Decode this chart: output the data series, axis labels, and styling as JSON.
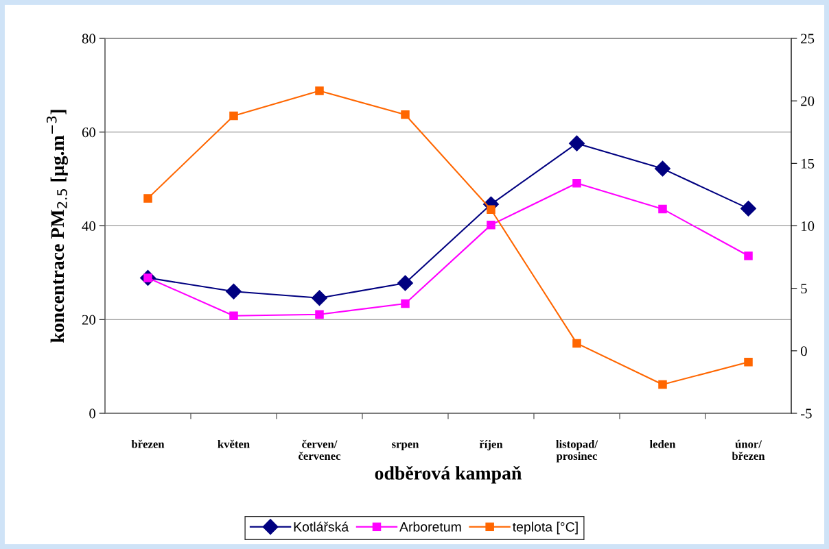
{
  "chart_data": {
    "type": "line",
    "categories": [
      "březen",
      "květen",
      "červen/\nčervenec",
      "srpen",
      "říjen",
      "listopad/\nprosinec",
      "leden",
      "únor/\nbřezen"
    ],
    "xlabel": "odběrová kampaň",
    "ylabel": "koncentrace PM$_{2.5}$ [µg.m$^{−3}$]",
    "series": [
      {
        "name": "Kotlářská",
        "color": "#000080",
        "marker": "diamond",
        "values": [
          28.9,
          26.0,
          24.6,
          27.8,
          44.6,
          57.6,
          52.2,
          43.7
        ]
      },
      {
        "name": "Arboretum",
        "color": "#ff00ff",
        "marker": "square",
        "values": [
          28.9,
          20.8,
          21.1,
          23.4,
          40.2,
          49.1,
          43.6,
          33.6
        ]
      },
      {
        "name": "teplota [°C]",
        "color": "#ff6600",
        "marker": "square",
        "axis": "y2",
        "values": [
          12.2,
          18.8,
          20.8,
          18.9,
          11.3,
          0.6,
          -2.7,
          -0.9
        ]
      }
    ],
    "ylim": [
      0,
      80
    ],
    "yticks": [
      0,
      20,
      40,
      60,
      80
    ],
    "y2lim": [
      -5,
      25
    ],
    "y2ticks": [
      -5,
      0,
      5,
      10,
      15,
      20,
      25
    ],
    "grid": "y",
    "legend": "bottom",
    "line_style": "solid"
  }
}
